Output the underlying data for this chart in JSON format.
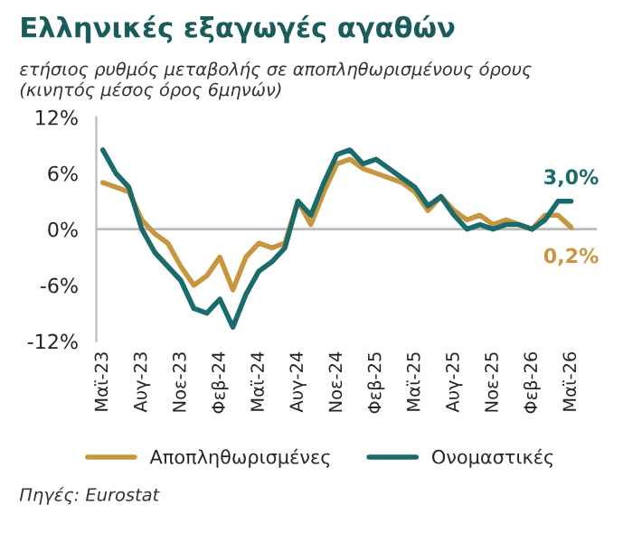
{
  "chart_data": {
    "type": "line",
    "title": "Ελληνικές εξαγωγές αγαθών",
    "subtitle": "ετήσιος ρυθμός μεταβολής σε αποπληθωρισμένους όρους\n(κινητός μέσος όρος 6μηνών)",
    "categories": [
      "Μαϊ-23",
      null,
      null,
      "Αυγ-23",
      null,
      null,
      "Νοε-23",
      null,
      null,
      "Φεβ-24",
      null,
      null,
      "Μαϊ-24",
      null,
      null,
      "Αυγ-24",
      null,
      null,
      "Νοε-24",
      null,
      null,
      "Φεβ-25",
      null,
      null,
      "Μαϊ-25",
      null,
      null,
      "Αυγ-25",
      null,
      null,
      "Νοε-25",
      null,
      null,
      "Φεβ-26",
      null,
      null,
      "Μαϊ-26"
    ],
    "series": [
      {
        "name": "Αποπληθωρισμένες",
        "color": "#c8963e",
        "values": [
          5,
          4.5,
          4,
          1,
          -0.5,
          -1.5,
          -4,
          -6,
          -5,
          -3,
          -6.5,
          -3,
          -1.5,
          -2,
          -1.5,
          3,
          0.5,
          4,
          7,
          7.5,
          6.5,
          6,
          5.5,
          5,
          4,
          2,
          3.5,
          2,
          1,
          1.5,
          0.5,
          1,
          0.5,
          0,
          1.5,
          1.5,
          0.2
        ]
      },
      {
        "name": "Ονομαστικές",
        "color": "#1a6b6b",
        "values": [
          8.5,
          6,
          4.5,
          0,
          -2.5,
          -4,
          -5.5,
          -8.5,
          -9,
          -7.5,
          -10.5,
          -7,
          -4.5,
          -3.5,
          -2,
          3,
          1.5,
          5,
          8,
          8.5,
          7,
          7.5,
          6.5,
          5.5,
          4.5,
          2.5,
          3.5,
          1.5,
          0,
          0.5,
          0,
          0.5,
          0.5,
          0,
          1,
          3,
          3.0
        ]
      }
    ],
    "ylim": [
      -12,
      12
    ],
    "yticks": [
      {
        "value": -12,
        "label": "-12%"
      },
      {
        "value": -6,
        "label": "-6%"
      },
      {
        "value": 0,
        "label": "0%"
      },
      {
        "value": 6,
        "label": "6%"
      },
      {
        "value": 12,
        "label": "12%"
      }
    ],
    "annotations": [
      {
        "text": "0,2%",
        "x": "Μαϊ-26",
        "y": 0.2
      },
      {
        "text": "3,0%",
        "x": "Μαϊ-26",
        "y": 3.0
      },
      "Πηγές: Eurostat"
    ],
    "ref_lines": [
      {
        "axis": "y",
        "value": 0,
        "color": "#bbbbbb"
      }
    ],
    "legend": "bottom",
    "grid": false,
    "line_style": "solid"
  }
}
